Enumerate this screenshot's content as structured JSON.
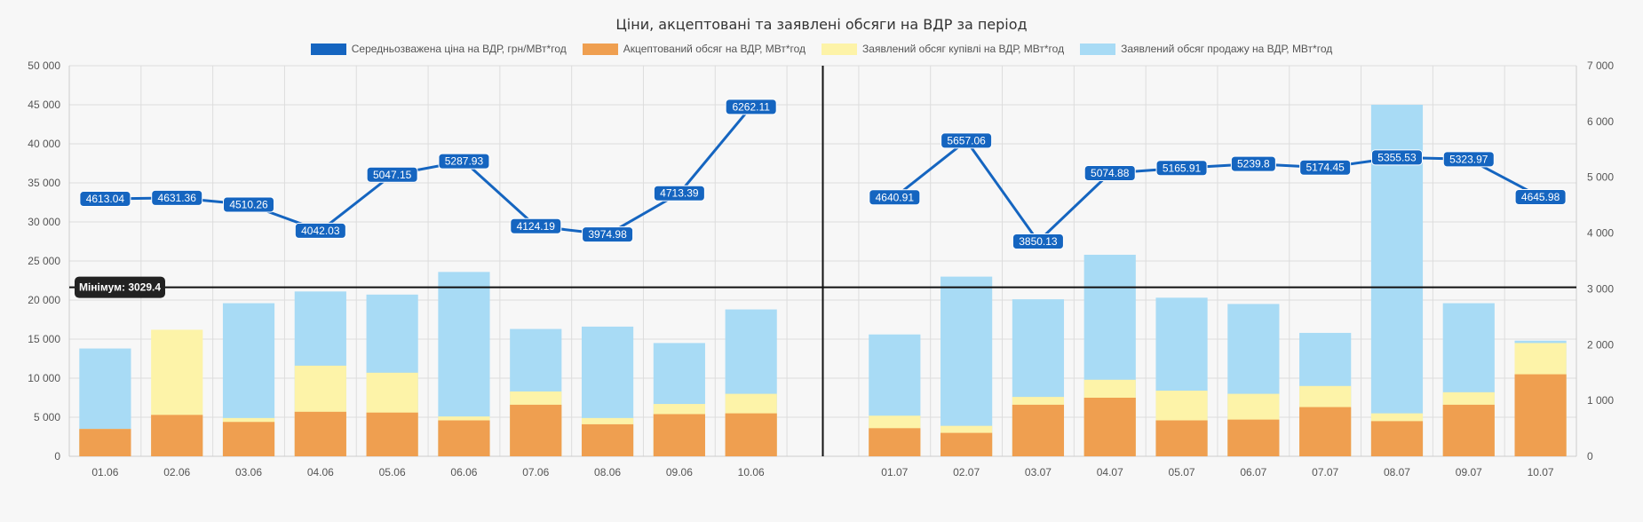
{
  "chart_data": {
    "type": "bar",
    "title": "Ціни, акцептовані та заявлені обсяги на ВДР за період",
    "legend_position": "top",
    "grid": true,
    "categories": [
      "01.06",
      "02.06",
      "03.06",
      "04.06",
      "05.06",
      "06.06",
      "07.06",
      "08.06",
      "09.06",
      "10.06",
      "",
      "01.07",
      "02.07",
      "03.07",
      "04.07",
      "05.07",
      "06.07",
      "07.07",
      "08.07",
      "09.07",
      "10.07"
    ],
    "y_left": {
      "min": 0,
      "max": 50000,
      "step": 5000,
      "tick_labels": [
        "0",
        "5 000",
        "10 000",
        "15 000",
        "20 000",
        "25 000",
        "30 000",
        "35 000",
        "40 000",
        "45 000",
        "50 000"
      ]
    },
    "y_right": {
      "min": 0,
      "max": 7000,
      "step": 1000,
      "tick_labels": [
        "0",
        "1 000",
        "2 000",
        "3 000",
        "4 000",
        "5 000",
        "6 000",
        "7 000"
      ]
    },
    "series": [
      {
        "name": "Середньозважена ціна на ВДР, грн/МВт*год",
        "type": "line",
        "axis": "right",
        "color": "#1565c0",
        "values": [
          4613.04,
          4631.36,
          4510.26,
          4042.03,
          5047.15,
          5287.93,
          4124.19,
          3974.98,
          4713.39,
          6262.11,
          null,
          4640.91,
          5657.06,
          3850.13,
          5074.88,
          5165.91,
          5239.8,
          5174.45,
          5355.53,
          5323.97,
          4645.98
        ],
        "labels": [
          "4613.04",
          "4631.36",
          "4510.26",
          "4042.03",
          "5047.15",
          "5287.93",
          "4124.19",
          "3974.98",
          "4713.39",
          "6262.11",
          "",
          "4640.91",
          "5657.06",
          "3850.13",
          "5074.88",
          "5165.91",
          "5239.8",
          "5174.45",
          "5355.53",
          "5323.97",
          "4645.98"
        ]
      },
      {
        "name": "Акцептований обсяг на ВДР, МВт*год",
        "type": "bar",
        "axis": "left",
        "color": "#ef9f50",
        "values": [
          3500,
          5300,
          4400,
          5700,
          5600,
          4600,
          6600,
          4100,
          5400,
          5500,
          null,
          3600,
          3000,
          6600,
          7500,
          4600,
          4700,
          6300,
          4500,
          6600,
          10500
        ]
      },
      {
        "name": "Заявлений обсяг купівлі на ВДР, МВт*год",
        "type": "bar",
        "axis": "left",
        "color": "#fdf3a8",
        "values": [
          3500,
          16200,
          4900,
          11600,
          10700,
          5100,
          8300,
          4900,
          6700,
          8000,
          null,
          5200,
          3900,
          7600,
          9800,
          8400,
          8000,
          9000,
          5500,
          8200,
          14500
        ]
      },
      {
        "name": "Заявлений обсяг продажу на ВДР, МВт*год",
        "type": "bar",
        "axis": "left",
        "color": "#a8dbf5",
        "values": [
          13800,
          5300,
          19600,
          21100,
          20700,
          23600,
          16300,
          16600,
          14500,
          18800,
          null,
          15600,
          23000,
          20100,
          25800,
          20300,
          19500,
          15800,
          45000,
          19600,
          14800
        ]
      }
    ],
    "annotations": [
      {
        "type": "horizontal_line",
        "axis": "right",
        "value": 3029.4,
        "label": "Мінімум: 3029.4",
        "color": "#111111"
      },
      {
        "type": "vertical_line",
        "between": [
          "10.06",
          "01.07"
        ],
        "color": "#111111"
      }
    ]
  }
}
